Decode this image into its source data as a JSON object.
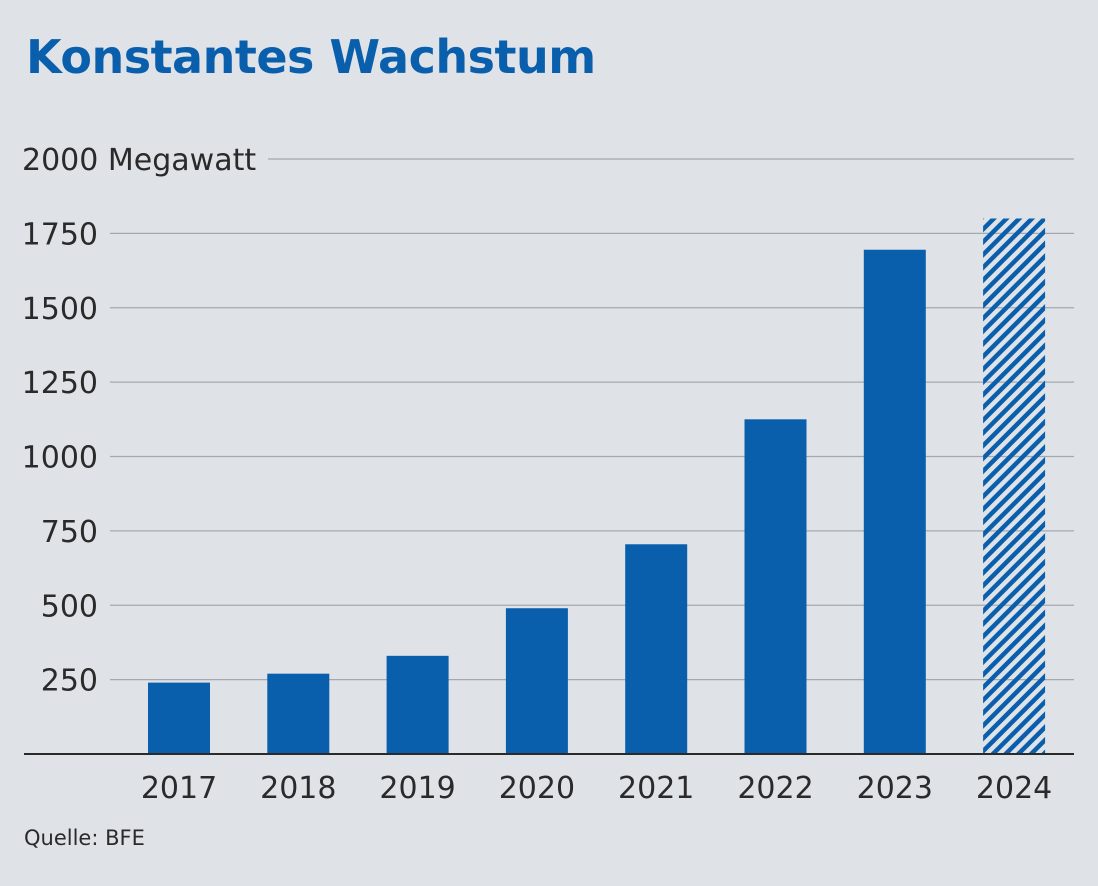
{
  "title": "Konstantes Wachstum",
  "source": "Quelle: BFE",
  "colors": {
    "bar": "#0a5fad",
    "grid": "#a4a9af",
    "axis": "#2a2a2a",
    "background": "#dfe3e8"
  },
  "chart_data": {
    "type": "bar",
    "title": "Konstantes Wachstum",
    "xlabel": "",
    "ylabel": "Megawatt",
    "unit_label": "2000 Megawatt",
    "ylim": [
      0,
      2000
    ],
    "yticks": [
      250,
      500,
      750,
      1000,
      1250,
      1500,
      1750,
      2000
    ],
    "ytick_labels": [
      "250",
      "500",
      "750",
      "1000",
      "1250",
      "1500",
      "1750",
      "2000 Megawatt"
    ],
    "categories": [
      "2017",
      "2018",
      "2019",
      "2020",
      "2021",
      "2022",
      "2023",
      "2024"
    ],
    "values": [
      240,
      270,
      330,
      490,
      705,
      1125,
      1695,
      1800
    ],
    "hatched": [
      false,
      false,
      false,
      false,
      false,
      false,
      false,
      true
    ],
    "grid": true,
    "legend": "none"
  }
}
